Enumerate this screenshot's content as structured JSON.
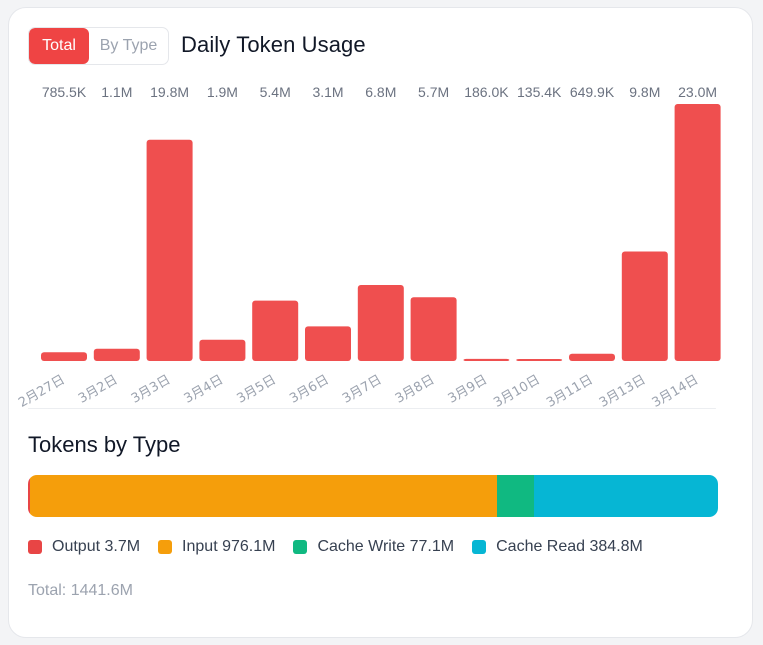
{
  "toggle": {
    "total_label": "Total",
    "by_type_label": "By Type"
  },
  "chart_data": {
    "type": "bar",
    "title": "Daily Token Usage",
    "categories": [
      "2月27日",
      "3月2日",
      "3月3日",
      "3月4日",
      "3月5日",
      "3月6日",
      "3月7日",
      "3月8日",
      "3月9日",
      "3月10日",
      "3月11日",
      "3月13日",
      "3月14日"
    ],
    "values": [
      785500,
      1100000,
      19800000,
      1900000,
      5400000,
      3100000,
      6800000,
      5700000,
      186000,
      135400,
      649900,
      9800000,
      23000000
    ],
    "value_labels": [
      "785.5K",
      "1.1M",
      "19.8M",
      "1.9M",
      "5.4M",
      "3.1M",
      "6.8M",
      "5.7M",
      "186.0K",
      "135.4K",
      "649.9K",
      "9.8M",
      "23.0M"
    ],
    "ylim": [
      0,
      23000000
    ],
    "xlabel": "",
    "ylabel": "",
    "color": "#ef4f4f"
  },
  "types": {
    "title": "Tokens by Type",
    "items": [
      {
        "name": "Output",
        "value_label": "3.7M",
        "value": 3.7,
        "color": "#e84545"
      },
      {
        "name": "Input",
        "value_label": "976.1M",
        "value": 976.1,
        "color": "#f59e0b"
      },
      {
        "name": "Cache Write",
        "value_label": "77.1M",
        "value": 77.1,
        "color": "#10b981"
      },
      {
        "name": "Cache Read",
        "value_label": "384.8M",
        "value": 384.8,
        "color": "#06b6d4"
      }
    ],
    "total_label": "Total: 1441.6M"
  }
}
